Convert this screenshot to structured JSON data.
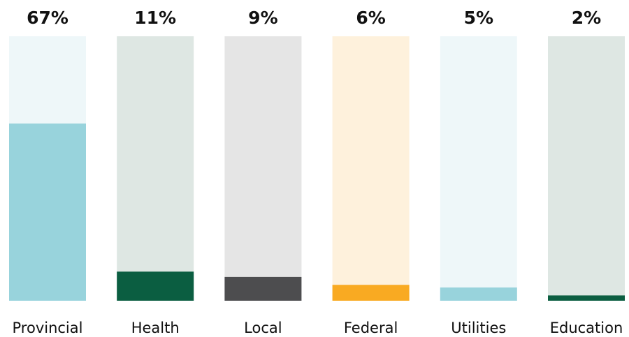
{
  "chart_data": {
    "type": "bar",
    "categories": [
      "Provincial",
      "Health",
      "Local",
      "Federal",
      "Utilities",
      "Education"
    ],
    "values": [
      67,
      11,
      9,
      6,
      5,
      2
    ],
    "value_labels": [
      "67%",
      "11%",
      "9%",
      "6%",
      "5%",
      "2%"
    ],
    "ylim": [
      0,
      100
    ],
    "colors": [
      "#98d3dc",
      "#0b5e41",
      "#4d4d4f",
      "#f9aa22",
      "#98d3dc",
      "#0b5e41"
    ],
    "track_colors": [
      "#eef7f9",
      "#dee7e3",
      "#e5e5e5",
      "#fef1dc",
      "#eef7f9",
      "#dee7e3"
    ]
  }
}
